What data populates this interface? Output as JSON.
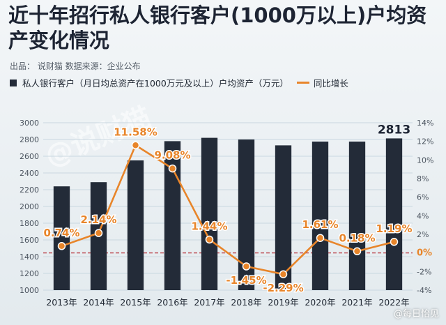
{
  "header": {
    "title": "近十年招行私人银行客户(1000万以上)户均资产变化情况",
    "source": "出品：  说财猫   数据来源：企业公布"
  },
  "legend": {
    "bar_label": "私人银行客户（月日均总资产在1000万元及以上）户均资产（万元）",
    "line_label": "同比增长"
  },
  "watermark": {
    "text": "@说财猫",
    "footer": "@每日怡见"
  },
  "colors": {
    "bar": "#232b38",
    "line": "#e8852a",
    "zero_line": "#b3262e"
  },
  "chart_data": {
    "type": "bar",
    "categories": [
      "2013年",
      "2014年",
      "2015年",
      "2016年",
      "2017年",
      "2018年",
      "2019年",
      "2020年",
      "2021年",
      "2022年"
    ],
    "series": [
      {
        "type": "bar",
        "axis": "left",
        "values": [
          2240,
          2290,
          2550,
          2780,
          2820,
          2800,
          2730,
          2775,
          2775,
          2813
        ]
      },
      {
        "type": "line",
        "axis": "right",
        "values": [
          0.74,
          2.14,
          11.58,
          9.08,
          1.44,
          -1.45,
          -2.29,
          1.61,
          0.18,
          1.19
        ]
      }
    ],
    "data_labels_line": [
      "0.74%",
      "2.14%",
      "11.58%",
      "9.08%",
      "1.44%",
      "-1.45%",
      "-2.29%",
      "1.61%",
      "0.18%",
      "1.19%"
    ],
    "bar_label": {
      "index": 9,
      "text": "2813"
    },
    "yleft_ticks": [
      "1000",
      "1200",
      "1400",
      "1600",
      "1800",
      "2000",
      "2200",
      "2400",
      "2600",
      "2800",
      "3000"
    ],
    "yright_ticks": [
      "-4%",
      "-2%",
      "0%",
      "2%",
      "4%",
      "6%",
      "8%",
      "10%",
      "12%",
      "14%"
    ],
    "yleft_lim": [
      1000,
      3000
    ],
    "yright_lim": [
      -4,
      14
    ],
    "grid": true
  }
}
